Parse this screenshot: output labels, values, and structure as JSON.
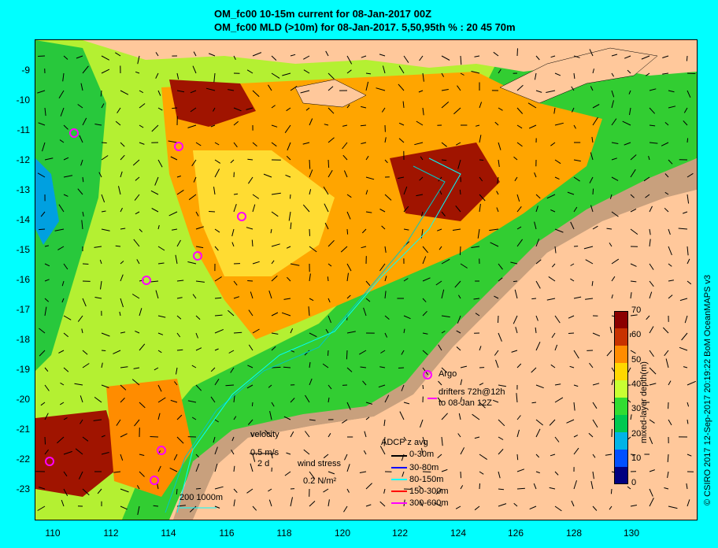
{
  "title": {
    "line1": "OM_fc00 10-15m current for 08-Jan-2017 00Z",
    "line2": "OM_fc00 MLD (>10m) for 08-Jan-2017. 5,50,95th % : 20  45  70m"
  },
  "axes": {
    "y_ticks": [
      "-9",
      "-10",
      "-11",
      "-12",
      "-13",
      "-14",
      "-15",
      "-16",
      "-17",
      "-18",
      "-19",
      "-20",
      "-21",
      "-22",
      "-23"
    ],
    "x_ticks": [
      "110",
      "112",
      "114",
      "116",
      "118",
      "120",
      "122",
      "124",
      "126",
      "128",
      "130"
    ]
  },
  "colorbar": {
    "title": "mixed-layer depth(m)",
    "ticks": [
      "70",
      "60",
      "50",
      "40",
      "30",
      "20",
      "10",
      "0"
    ],
    "colors": [
      "#8b0000",
      "#c83200",
      "#ff8c00",
      "#ffd700",
      "#c8ff32",
      "#32dc32",
      "#00c850",
      "#00b4e6",
      "#0050ff",
      "#000080"
    ]
  },
  "legend": {
    "argo": "Argo",
    "drifters_line1": "drifters 72h@12h",
    "drifters_line2": "to 08-Jan 12Z",
    "velocity_title": "velocity",
    "velocity_value": "0.5 m/s",
    "velocity_time": "2 d",
    "wind_stress_title": "wind stress",
    "wind_stress_value": "0.2 N/m²",
    "adcp_title": "ADCP z avg",
    "adcp_items": [
      {
        "label": "0-30m",
        "color": "#000000"
      },
      {
        "label": "30-80m",
        "color": "#0000ff"
      },
      {
        "label": "80-150m",
        "color": "#00ffff"
      },
      {
        "label": "150-300m",
        "color": "#ff0000"
      },
      {
        "label": "300-600m",
        "color": "#ff00ff"
      }
    ],
    "contours": "200  1000m"
  },
  "credit": "© CSIRO 2017   12-Sep-2017 20:19:22 BoM OceanMAPS v3"
}
